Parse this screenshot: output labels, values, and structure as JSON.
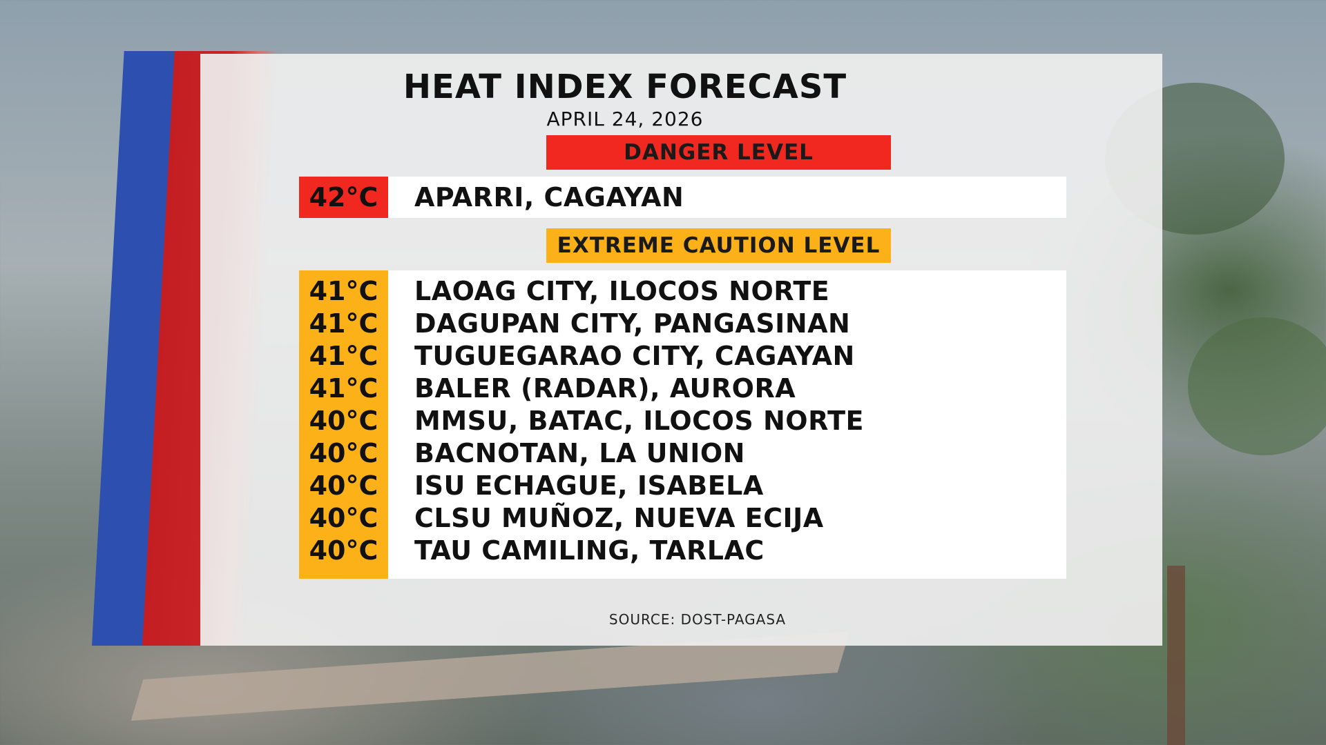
{
  "title": "HEAT INDEX FORECAST",
  "date": "APRIL 24, 2026",
  "danger": {
    "label": "DANGER LEVEL",
    "color": "#f0281f",
    "rows": [
      {
        "temp": "42°C",
        "place": "APARRI, CAGAYAN"
      }
    ]
  },
  "caution": {
    "label": "EXTREME CAUTION LEVEL",
    "color": "#fbb117",
    "rows": [
      {
        "temp": "41°C",
        "place": "LAOAG CITY, ILOCOS NORTE"
      },
      {
        "temp": "41°C",
        "place": "DAGUPAN CITY, PANGASINAN"
      },
      {
        "temp": "41°C",
        "place": "TUGUEGARAO CITY, CAGAYAN"
      },
      {
        "temp": "41°C",
        "place": "BALER (RADAR), AURORA"
      },
      {
        "temp": "40°C",
        "place": "MMSU, BATAC, ILOCOS NORTE"
      },
      {
        "temp": "40°C",
        "place": "BACNOTAN, LA UNION"
      },
      {
        "temp": "40°C",
        "place": "ISU ECHAGUE, ISABELA"
      },
      {
        "temp": "40°C",
        "place": "CLSU MUÑOZ, NUEVA ECIJA"
      },
      {
        "temp": "40°C",
        "place": "TAU CAMILING, TARLAC"
      }
    ]
  },
  "source": "SOURCE: DOST-PAGASA",
  "colors": {
    "stripe_blue": "#2c4fb0",
    "stripe_red": "#c31e22"
  }
}
